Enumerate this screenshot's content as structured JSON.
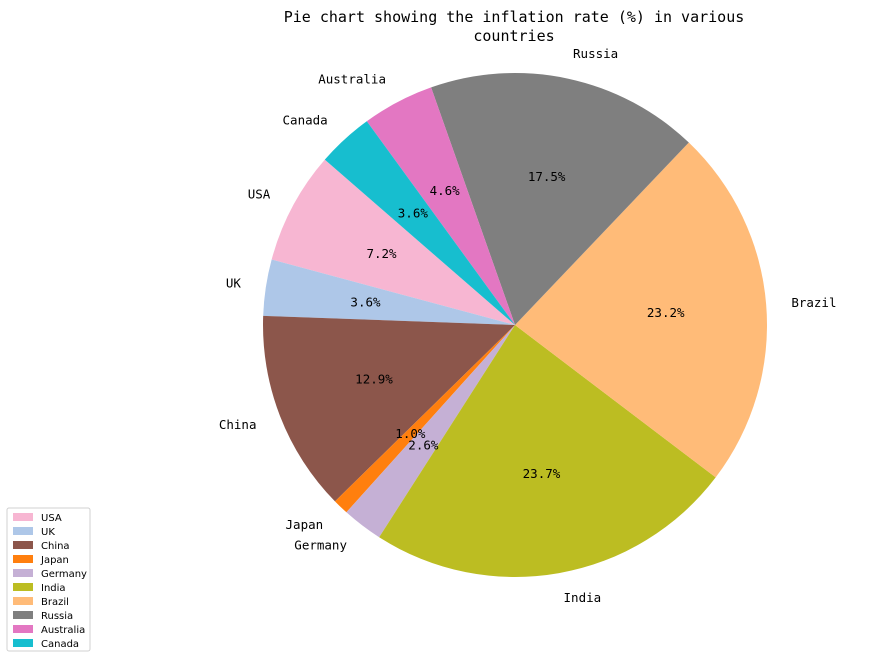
{
  "chart_data": {
    "type": "pie",
    "title_line1": "Pie chart showing the inflation rate (%) in various",
    "title_line2": "countries",
    "categories": [
      "USA",
      "UK",
      "China",
      "Japan",
      "Germany",
      "India",
      "Brazil",
      "Russia",
      "Australia",
      "Canada"
    ],
    "values": [
      7.2,
      3.6,
      12.9,
      1.0,
      2.6,
      23.7,
      23.2,
      17.5,
      4.6,
      3.6
    ],
    "percent_labels": [
      "7.2%",
      "3.6%",
      "12.9%",
      "1.0%",
      "2.6%",
      "23.7%",
      "23.2%",
      "17.5%",
      "4.6%",
      "3.6%"
    ],
    "colors": [
      "#f7b6d2",
      "#aec7e8",
      "#8c564b",
      "#ff7f0e",
      "#c5b0d5",
      "#bcbd22",
      "#ffbb78",
      "#7f7f7f",
      "#e377c2",
      "#17becf"
    ],
    "start_angle_deg": 139,
    "direction": "counterclockwise",
    "legend_position": "lower-left"
  }
}
